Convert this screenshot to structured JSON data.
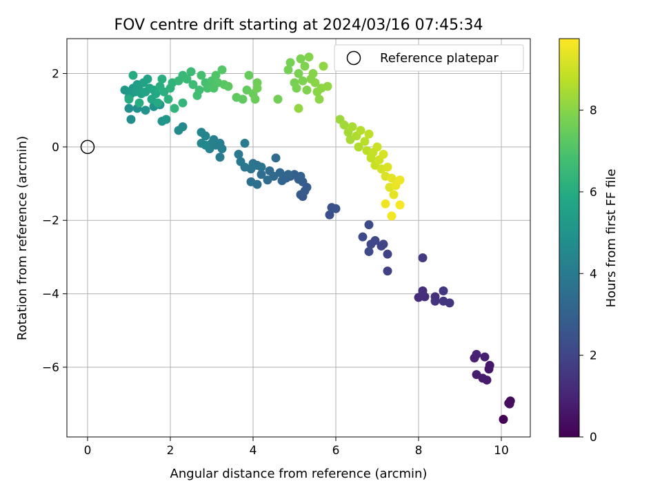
{
  "chart_data": {
    "type": "scatter",
    "title": "FOV centre drift starting at 2024/03/16 07:45:34",
    "xlabel": "Angular distance from reference (arcmin)",
    "ylabel": "Rotation from reference (arcmin)",
    "xlim": [
      -0.5,
      10.7
    ],
    "ylim": [
      -7.9,
      2.95
    ],
    "xticks": [
      0,
      2,
      4,
      6,
      8,
      10
    ],
    "yticks": [
      -6,
      -4,
      -2,
      0,
      2
    ],
    "grid": true,
    "legend": {
      "position": "top-right",
      "entries": [
        "Reference platepar"
      ]
    },
    "reference_point": {
      "x": 0,
      "y": 0
    },
    "colorbar": {
      "label": "Hours from first FF file",
      "range": [
        0,
        9.75
      ],
      "ticks": [
        0,
        2,
        4,
        6,
        8
      ],
      "colormap": "viridis"
    },
    "series": [
      {
        "points": [
          [
            10.05,
            -7.42,
            0.05
          ],
          [
            10.18,
            -6.98,
            0.15
          ],
          [
            10.22,
            -6.92,
            0.25
          ],
          [
            10.2,
            -7.0,
            0.35
          ],
          [
            9.7,
            -6.05,
            0.55
          ],
          [
            9.72,
            -5.95,
            0.6
          ],
          [
            9.65,
            -6.35,
            0.7
          ],
          [
            9.55,
            -6.3,
            0.75
          ],
          [
            9.4,
            -6.2,
            0.8
          ],
          [
            9.6,
            -5.72,
            0.85
          ],
          [
            9.35,
            -5.75,
            0.9
          ],
          [
            9.4,
            -5.65,
            0.95
          ],
          [
            8.0,
            -4.1,
            1.2
          ],
          [
            8.15,
            -4.08,
            1.25
          ],
          [
            8.1,
            -3.92,
            1.3
          ],
          [
            8.4,
            -4.08,
            1.35
          ],
          [
            8.4,
            -4.2,
            1.4
          ],
          [
            8.6,
            -4.2,
            1.45
          ],
          [
            8.75,
            -4.25,
            1.5
          ],
          [
            8.6,
            -3.92,
            1.55
          ],
          [
            8.1,
            -3.02,
            1.65
          ],
          [
            7.25,
            -3.38,
            1.85
          ],
          [
            7.25,
            -2.92,
            1.9
          ],
          [
            7.1,
            -2.7,
            1.95
          ],
          [
            7.15,
            -2.65,
            2.0
          ],
          [
            6.95,
            -2.55,
            2.05
          ],
          [
            6.85,
            -2.65,
            2.1
          ],
          [
            6.8,
            -2.85,
            2.15
          ],
          [
            6.65,
            -2.45,
            2.2
          ],
          [
            6.8,
            -2.12,
            2.25
          ],
          [
            5.85,
            -1.85,
            2.4
          ],
          [
            5.9,
            -1.65,
            2.45
          ],
          [
            6.0,
            -1.68,
            2.5
          ],
          [
            5.2,
            -1.35,
            2.65
          ],
          [
            5.15,
            -1.3,
            2.7
          ],
          [
            5.3,
            -1.1,
            2.75
          ],
          [
            5.25,
            -1.2,
            2.8
          ],
          [
            5.2,
            -0.95,
            2.85
          ],
          [
            5.1,
            -0.88,
            2.9
          ],
          [
            5.0,
            -0.75,
            2.95
          ],
          [
            5.15,
            -0.8,
            3.0
          ],
          [
            4.9,
            -0.8,
            3.05
          ],
          [
            4.8,
            -0.85,
            3.1
          ],
          [
            4.7,
            -0.92,
            3.15
          ],
          [
            4.85,
            -0.75,
            3.2
          ],
          [
            4.65,
            -0.7,
            3.25
          ],
          [
            4.5,
            -0.8,
            3.3
          ],
          [
            4.4,
            -0.65,
            3.35
          ],
          [
            4.55,
            -0.3,
            3.4
          ],
          [
            4.35,
            -0.9,
            3.45
          ],
          [
            4.2,
            -0.75,
            3.5
          ],
          [
            4.1,
            -1.02,
            3.55
          ],
          [
            3.95,
            -0.95,
            3.6
          ],
          [
            4.1,
            -0.5,
            3.65
          ],
          [
            4.2,
            -0.55,
            3.7
          ],
          [
            4.0,
            -0.45,
            3.75
          ],
          [
            3.95,
            -0.6,
            3.8
          ],
          [
            3.8,
            -0.55,
            3.85
          ],
          [
            3.7,
            -0.4,
            3.9
          ],
          [
            3.65,
            -0.2,
            3.95
          ],
          [
            3.8,
            0.1,
            4.0
          ],
          [
            3.2,
            -0.28,
            4.05
          ],
          [
            3.25,
            -0.05,
            4.1
          ],
          [
            3.2,
            0.1,
            4.12
          ],
          [
            3.1,
            0.05,
            4.15
          ],
          [
            3.05,
            0.2,
            4.2
          ],
          [
            3.0,
            0.1,
            4.25
          ],
          [
            2.95,
            -0.05,
            4.3
          ],
          [
            2.85,
            0.3,
            4.35
          ],
          [
            2.75,
            0.4,
            4.4
          ],
          [
            2.75,
            0.1,
            4.45
          ],
          [
            2.85,
            0.05,
            4.5
          ],
          [
            2.3,
            0.55,
            4.6
          ],
          [
            2.2,
            0.45,
            4.65
          ],
          [
            1.05,
            0.75,
            4.75
          ],
          [
            1.0,
            1.05,
            4.8
          ],
          [
            1.2,
            1.05,
            4.85
          ],
          [
            1.4,
            1.0,
            4.9
          ],
          [
            1.6,
            1.1,
            4.95
          ],
          [
            1.75,
            1.15,
            5.0
          ],
          [
            1.8,
            0.7,
            5.05
          ],
          [
            1.9,
            0.75,
            5.1
          ],
          [
            0.9,
            1.55,
            5.15
          ],
          [
            1.0,
            1.35,
            5.2
          ],
          [
            1.05,
            1.45,
            5.25
          ],
          [
            1.1,
            1.6,
            5.3
          ],
          [
            1.15,
            1.5,
            5.35
          ],
          [
            1.2,
            1.7,
            5.4
          ],
          [
            1.25,
            1.55,
            5.45
          ],
          [
            1.3,
            1.45,
            5.5
          ],
          [
            1.35,
            1.75,
            5.55
          ],
          [
            1.4,
            1.5,
            5.6
          ],
          [
            1.45,
            1.85,
            5.65
          ],
          [
            1.5,
            1.6,
            5.7
          ],
          [
            1.55,
            1.3,
            5.75
          ],
          [
            1.6,
            1.55,
            5.8
          ],
          [
            1.65,
            1.45,
            5.85
          ],
          [
            1.7,
            1.2,
            5.9
          ],
          [
            1.0,
            1.3,
            5.95
          ],
          [
            1.1,
            1.95,
            6.0
          ],
          [
            1.25,
            1.2,
            6.02
          ],
          [
            1.75,
            1.65,
            6.05
          ],
          [
            1.8,
            1.85,
            6.1
          ],
          [
            1.85,
            1.5,
            6.15
          ],
          [
            1.95,
            1.3,
            6.2
          ],
          [
            2.0,
            1.6,
            6.25
          ],
          [
            2.05,
            1.75,
            6.3
          ],
          [
            2.1,
            1.05,
            6.35
          ],
          [
            2.3,
            1.2,
            6.4
          ],
          [
            2.2,
            1.8,
            6.45
          ],
          [
            2.3,
            1.95,
            6.5
          ],
          [
            2.4,
            1.85,
            6.55
          ],
          [
            2.5,
            2.05,
            6.6
          ],
          [
            2.55,
            1.7,
            6.65
          ],
          [
            2.65,
            1.4,
            6.7
          ],
          [
            2.7,
            1.55,
            6.75
          ],
          [
            2.75,
            1.95,
            6.8
          ],
          [
            2.85,
            1.75,
            6.85
          ],
          [
            2.9,
            1.6,
            6.9
          ],
          [
            3.0,
            1.8,
            6.95
          ],
          [
            3.05,
            1.6,
            7.0
          ],
          [
            3.1,
            1.95,
            7.05
          ],
          [
            3.15,
            1.75,
            7.1
          ],
          [
            3.25,
            2.1,
            7.15
          ],
          [
            3.3,
            1.7,
            7.2
          ],
          [
            3.4,
            1.65,
            7.25
          ],
          [
            3.6,
            1.35,
            7.3
          ],
          [
            3.75,
            1.3,
            7.35
          ],
          [
            3.85,
            1.55,
            7.4
          ],
          [
            3.9,
            1.95,
            7.45
          ],
          [
            4.0,
            1.45,
            7.5
          ],
          [
            4.05,
            1.3,
            7.55
          ],
          [
            4.1,
            1.75,
            7.6
          ],
          [
            4.1,
            1.6,
            7.62
          ],
          [
            4.6,
            1.3,
            7.65
          ],
          [
            4.85,
            2.1,
            7.7
          ],
          [
            4.9,
            2.3,
            7.72
          ],
          [
            5.0,
            1.75,
            7.75
          ],
          [
            5.05,
            1.6,
            7.78
          ],
          [
            5.1,
            2.0,
            7.8
          ],
          [
            5.15,
            2.4,
            7.82
          ],
          [
            5.2,
            1.8,
            7.85
          ],
          [
            5.25,
            2.2,
            7.87
          ],
          [
            5.3,
            1.55,
            7.9
          ],
          [
            5.35,
            2.45,
            7.92
          ],
          [
            5.4,
            1.85,
            7.95
          ],
          [
            5.45,
            2.0,
            7.97
          ],
          [
            5.5,
            1.75,
            8.0
          ],
          [
            5.55,
            1.5,
            8.02
          ],
          [
            5.6,
            1.3,
            8.05
          ],
          [
            5.65,
            1.6,
            8.07
          ],
          [
            5.7,
            2.2,
            8.1
          ],
          [
            5.8,
            1.65,
            8.12
          ],
          [
            5.1,
            1.05,
            8.15
          ],
          [
            6.1,
            0.75,
            8.3
          ],
          [
            6.2,
            0.6,
            8.35
          ],
          [
            6.3,
            0.4,
            8.4
          ],
          [
            6.35,
            0.2,
            8.45
          ],
          [
            6.4,
            0.55,
            8.5
          ],
          [
            6.5,
            0.3,
            8.55
          ],
          [
            6.55,
            0.0,
            8.6
          ],
          [
            6.6,
            0.45,
            8.65
          ],
          [
            6.7,
            0.15,
            8.7
          ],
          [
            6.75,
            -0.1,
            8.75
          ],
          [
            6.8,
            0.35,
            8.8
          ],
          [
            6.85,
            -0.3,
            8.85
          ],
          [
            6.9,
            -0.15,
            8.9
          ],
          [
            6.95,
            -0.5,
            8.95
          ],
          [
            7.0,
            0.0,
            9.0
          ],
          [
            7.05,
            -0.35,
            9.05
          ],
          [
            7.1,
            -0.6,
            9.1
          ],
          [
            7.15,
            -0.2,
            9.15
          ],
          [
            7.2,
            -0.8,
            9.2
          ],
          [
            7.25,
            -0.55,
            9.25
          ],
          [
            7.3,
            -1.1,
            9.3
          ],
          [
            7.35,
            -0.85,
            9.35
          ],
          [
            7.4,
            -1.3,
            9.4
          ],
          [
            7.45,
            -1.05,
            9.45
          ],
          [
            7.55,
            -0.9,
            9.5
          ],
          [
            7.2,
            -1.55,
            9.55
          ],
          [
            7.35,
            -1.88,
            9.6
          ],
          [
            7.55,
            -1.58,
            9.65
          ]
        ]
      }
    ]
  }
}
